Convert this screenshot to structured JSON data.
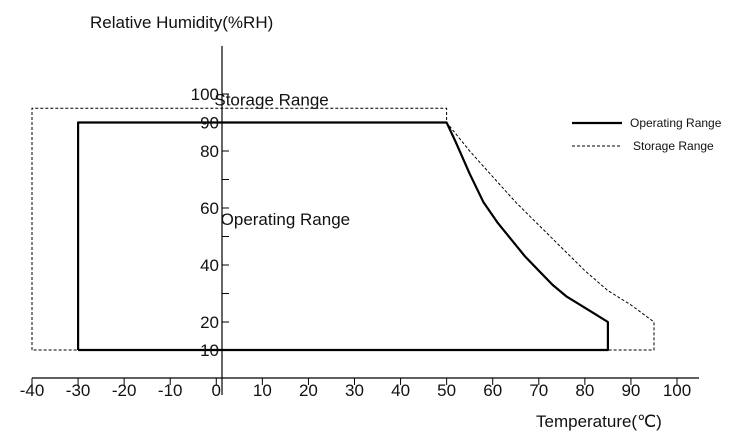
{
  "chart_data": {
    "type": "area",
    "title": "",
    "xlabel": "Temperature(℃)",
    "ylabel": "Relative Humidity(%RH)",
    "xlim": [
      -40,
      100
    ],
    "ylim": [
      10,
      100
    ],
    "x_ticks": [
      "-40",
      "-30",
      "-20",
      "-10",
      "0",
      "10",
      "20",
      "30",
      "40",
      "50",
      "60",
      "70",
      "80",
      "90",
      "100"
    ],
    "y_ticks": [
      "10",
      "20",
      "40",
      "60",
      "80",
      "90",
      "100"
    ],
    "grid": false,
    "legend_position": "top-right",
    "annotations": [
      {
        "text": "Storage Range",
        "x": 12,
        "y": 96
      },
      {
        "text": "Operating Range",
        "x": 15,
        "y": 54
      }
    ],
    "series": [
      {
        "name": "Operating Range",
        "style": "solid",
        "points": [
          [
            -30,
            10
          ],
          [
            -30,
            90
          ],
          [
            50,
            90
          ],
          [
            52,
            83
          ],
          [
            55,
            72
          ],
          [
            58,
            62
          ],
          [
            61,
            55
          ],
          [
            64,
            49
          ],
          [
            67,
            43
          ],
          [
            70,
            38
          ],
          [
            73,
            33
          ],
          [
            76,
            29
          ],
          [
            79,
            26
          ],
          [
            82,
            23
          ],
          [
            85,
            20
          ],
          [
            85,
            10
          ],
          [
            -30,
            10
          ]
        ]
      },
      {
        "name": "Storage Range",
        "style": "dashed",
        "points": [
          [
            -40,
            10
          ],
          [
            -40,
            95
          ],
          [
            50,
            95
          ],
          [
            50,
            90
          ],
          [
            55,
            80
          ],
          [
            60,
            71
          ],
          [
            65,
            62
          ],
          [
            70,
            54
          ],
          [
            75,
            46
          ],
          [
            80,
            38
          ],
          [
            85,
            31
          ],
          [
            90,
            26
          ],
          [
            95,
            20
          ],
          [
            95,
            10
          ],
          [
            -40,
            10
          ]
        ]
      }
    ]
  }
}
